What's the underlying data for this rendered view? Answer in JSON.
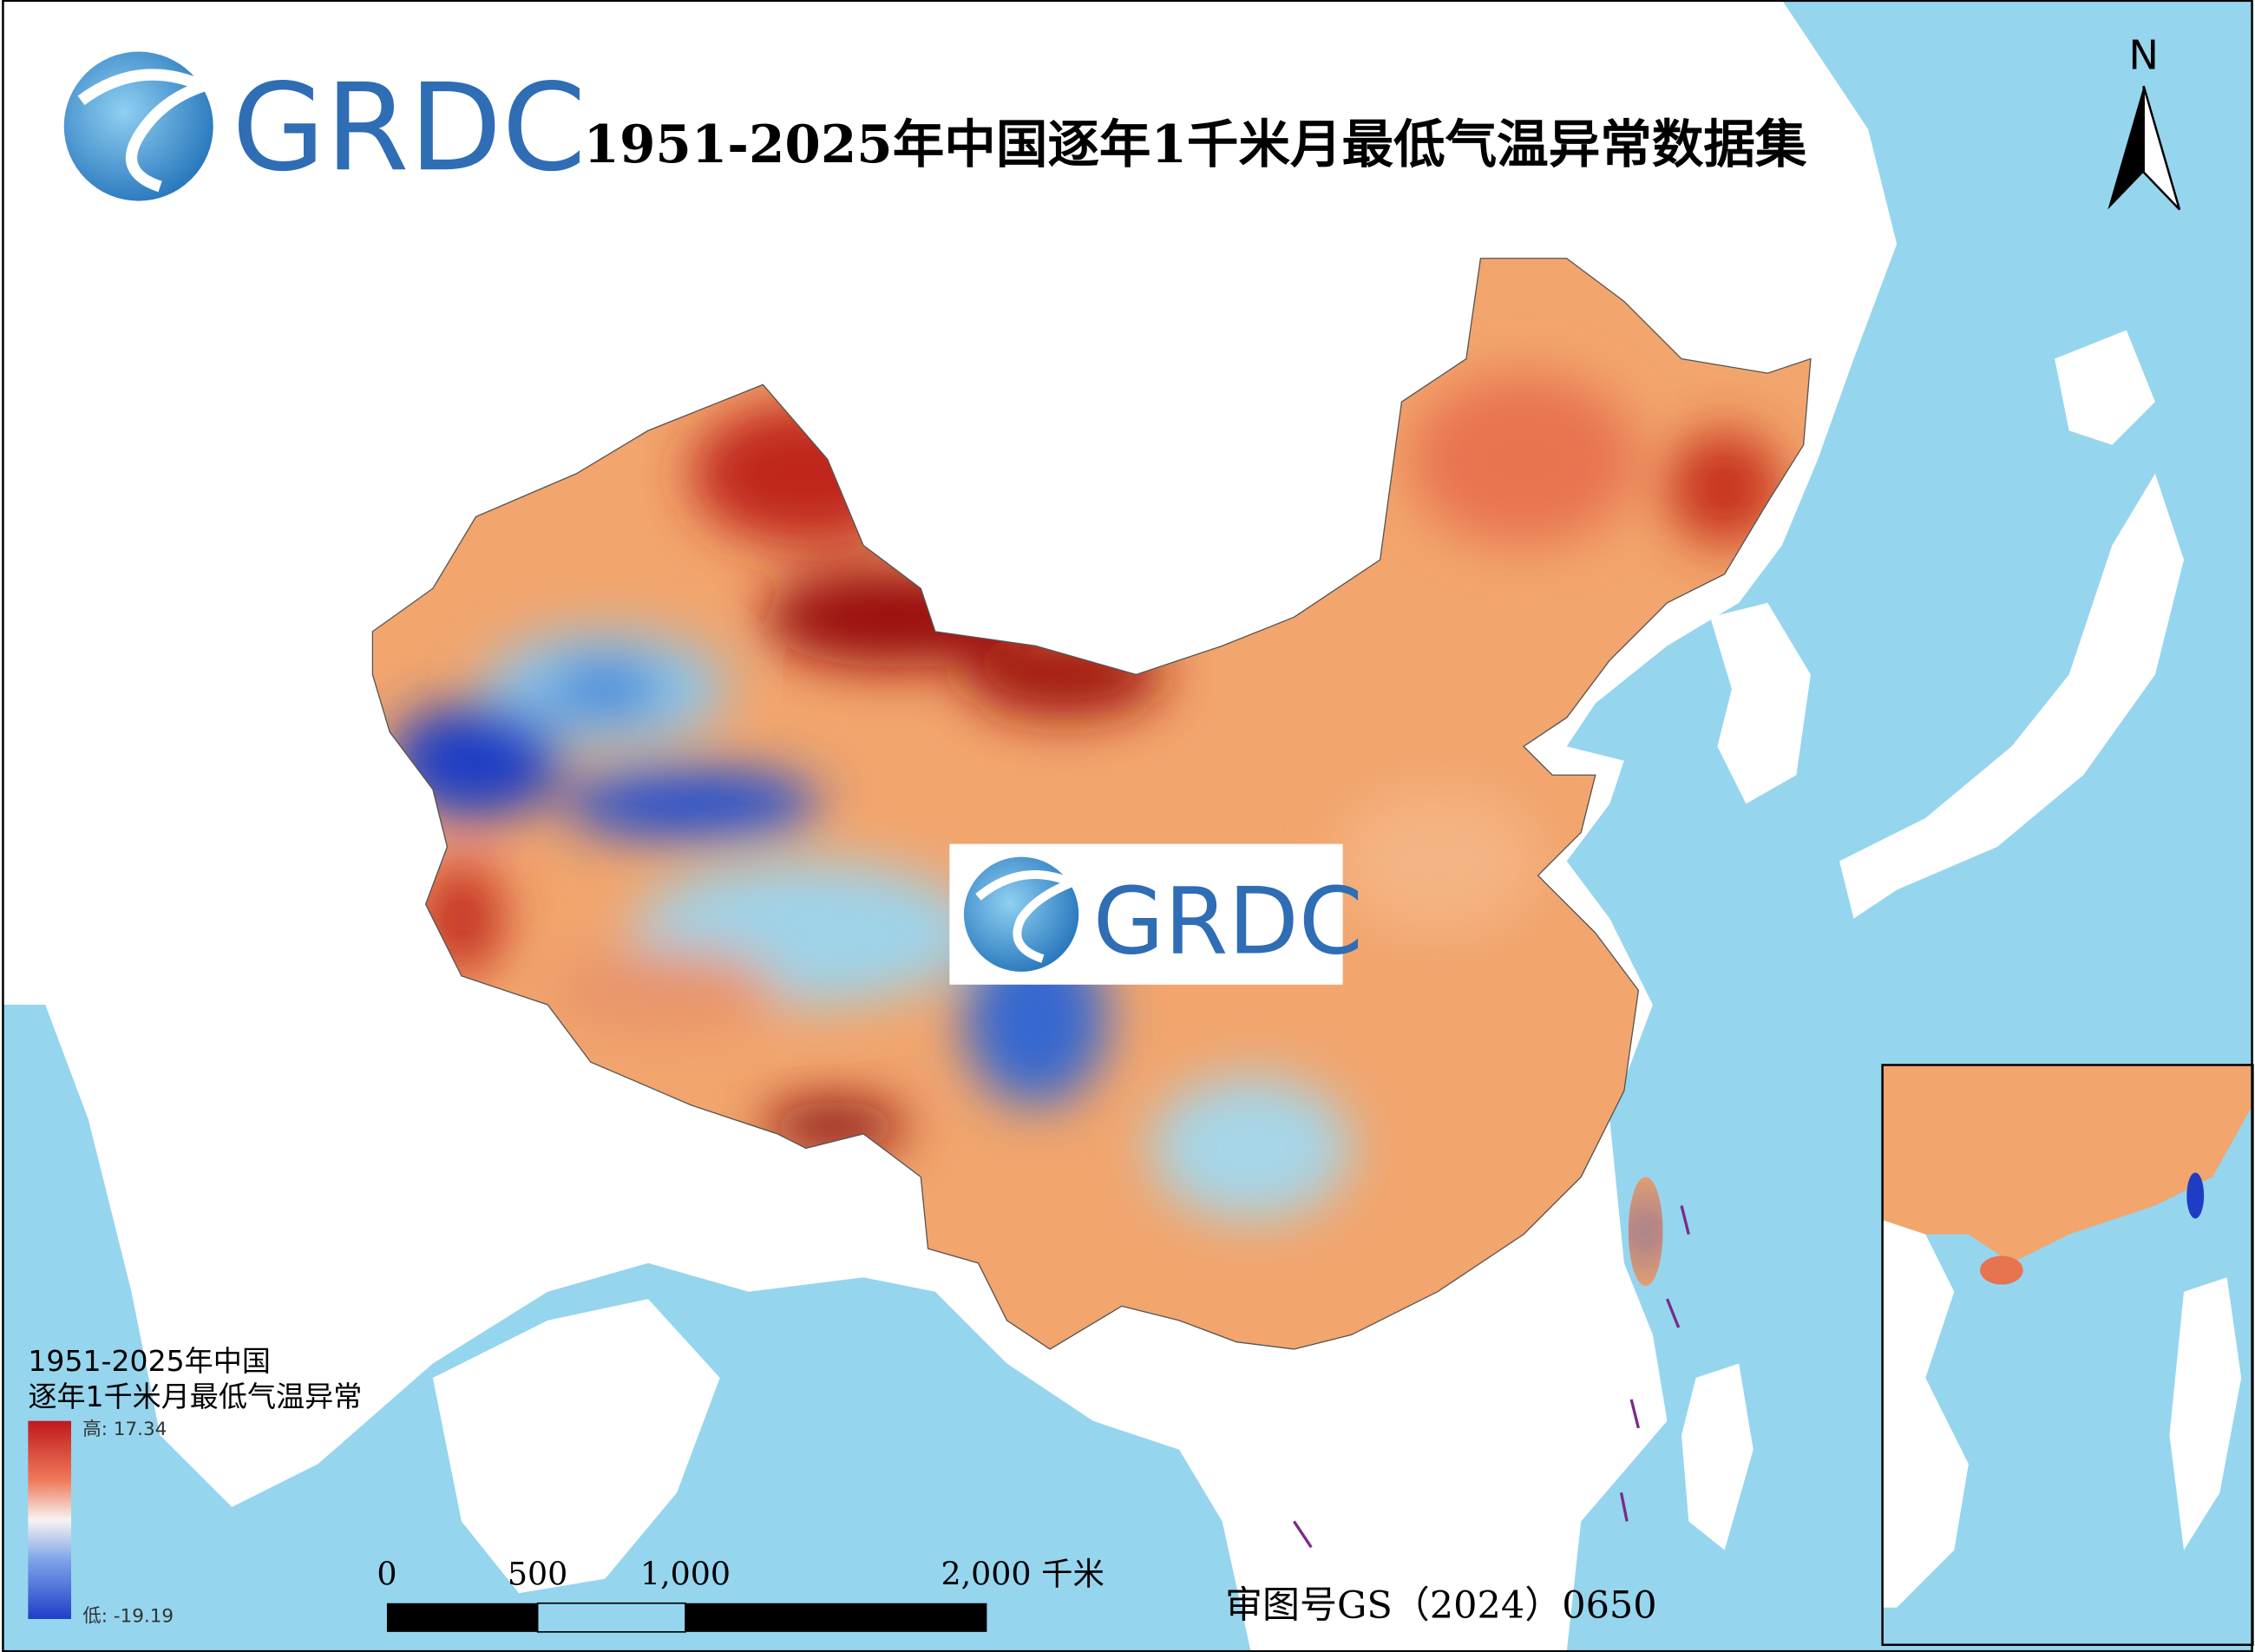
{
  "header": {
    "logo_text": "GRDC",
    "title": "1951-2025年中国逐年1千米月最低气温异常数据集"
  },
  "north_arrow": {
    "label": "N"
  },
  "legend": {
    "title_line1": "1951-2025年中国",
    "title_line2": "逐年1千米月最低气温异常",
    "high_label": "高: 17.34",
    "low_label": "低: -19.19"
  },
  "scale_bar": {
    "labels": [
      "0",
      "500",
      "1,000",
      "2,000 千米"
    ]
  },
  "approval_number": "审图号GS（2024）0650",
  "watermark": {
    "logo_text": "GRDC"
  }
}
